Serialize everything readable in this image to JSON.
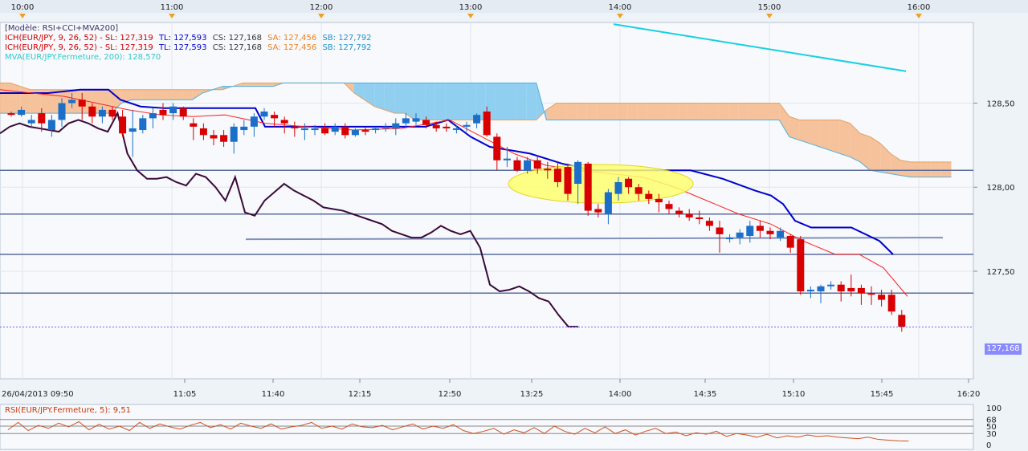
{
  "colors": {
    "bull": "#1b6fc8",
    "bear": "#d90000",
    "kijun": "#0000cc",
    "tenkan": "#ff2020",
    "chikou": "#3a0a3a",
    "kumo_up": "#f5b88a",
    "kumo_down": "#7ec8ec",
    "mva": "#18d0e0",
    "hline": "#5a6c9a",
    "rsi": "#d05020"
  },
  "legend": {
    "line1": "[Modèle: RSI+CCI+MVA200]",
    "line2": {
      "name": "ICH(EUR/JPY, 9, 26, 52) -  SL: 127,319",
      "tl": "TL: 127,593",
      "cs": "CS: 127,168",
      "sa": "SA: 127,456",
      "sb": "SB: 127,792"
    },
    "line3": {
      "name": "ICH(EUR/JPY, 9, 26, 52) -  SL: 127,319",
      "tl": "TL: 127,593",
      "cs": "CS: 127,168",
      "sa": "SA: 127,456",
      "sb": "SB: 127,792"
    },
    "line4": "MVA(EUR/JPY.Fermeture, 200): 128,570"
  },
  "rsi_label": "RSI(EUR/JPY.Fermeture, 5): 9,51",
  "last_price": "127,168",
  "date_label": "26/04/2013 09:50",
  "chart_data": {
    "type": "candlestick",
    "instrument": "EUR/JPY",
    "top_axis": [
      "10:00",
      "11:00",
      "12:00",
      "13:00",
      "14:00",
      "15:00",
      "16:00"
    ],
    "bottom_axis": [
      "11:05",
      "11:40",
      "12:15",
      "12:50",
      "13:25",
      "14:00",
      "14:35",
      "15:10",
      "15:45",
      "16:20"
    ],
    "y_ticks": [
      "128,50",
      "128,00",
      "127,50"
    ],
    "ylim": [
      126.86,
      128.98
    ],
    "rsi_ticks": [
      "100",
      "68",
      "50",
      "30",
      "0"
    ],
    "horizontal_levels": [
      128.1,
      127.84,
      127.6,
      127.37
    ],
    "candles": [
      [
        128.44,
        128.43,
        128.45,
        128.42
      ],
      [
        128.43,
        128.46,
        128.48,
        128.42
      ],
      [
        128.38,
        128.4,
        128.43,
        128.35
      ],
      [
        128.44,
        128.38,
        128.47,
        128.33
      ],
      [
        128.34,
        128.4,
        128.43,
        128.3
      ],
      [
        128.4,
        128.5,
        128.53,
        128.36
      ],
      [
        128.5,
        128.52,
        128.56,
        128.47
      ],
      [
        128.52,
        128.48,
        128.56,
        128.4
      ],
      [
        128.48,
        128.42,
        128.5,
        128.38
      ],
      [
        128.42,
        128.46,
        128.48,
        128.38
      ],
      [
        128.46,
        128.42,
        128.48,
        128.4
      ],
      [
        128.42,
        128.32,
        128.46,
        128.3
      ],
      [
        128.33,
        128.35,
        128.46,
        128.18
      ],
      [
        128.34,
        128.41,
        128.43,
        128.32
      ],
      [
        128.41,
        128.44,
        128.47,
        128.35
      ],
      [
        128.46,
        128.43,
        128.5,
        128.4
      ],
      [
        128.44,
        128.48,
        128.5,
        128.4
      ],
      [
        128.47,
        128.42,
        128.48,
        128.4
      ],
      [
        128.38,
        128.36,
        128.41,
        128.28
      ],
      [
        128.35,
        128.31,
        128.38,
        128.28
      ],
      [
        128.31,
        128.29,
        128.34,
        128.25
      ],
      [
        128.31,
        128.27,
        128.34,
        128.24
      ],
      [
        128.27,
        128.36,
        128.38,
        128.2
      ],
      [
        128.34,
        128.36,
        128.4,
        128.31
      ],
      [
        128.36,
        128.42,
        128.44,
        128.3
      ],
      [
        128.42,
        128.45,
        128.47,
        128.4
      ],
      [
        128.43,
        128.41,
        128.45,
        128.36
      ],
      [
        128.4,
        128.38,
        128.42,
        128.32
      ],
      [
        128.36,
        128.35,
        128.39,
        128.3
      ],
      [
        128.34,
        128.35,
        128.38,
        128.28
      ],
      [
        128.34,
        128.35,
        128.37,
        128.31
      ],
      [
        128.35,
        128.32,
        128.38,
        128.31
      ],
      [
        128.33,
        128.36,
        128.38,
        128.31
      ],
      [
        128.36,
        128.31,
        128.38,
        128.29
      ],
      [
        128.31,
        128.34,
        128.35,
        128.3
      ],
      [
        128.34,
        128.33,
        128.36,
        128.31
      ],
      [
        128.34,
        128.35,
        128.36,
        128.32
      ],
      [
        128.35,
        128.36,
        128.38,
        128.33
      ],
      [
        128.35,
        128.38,
        128.41,
        128.31
      ],
      [
        128.38,
        128.41,
        128.44,
        128.35
      ],
      [
        128.39,
        128.41,
        128.44,
        128.37
      ],
      [
        128.4,
        128.37,
        128.42,
        128.35
      ],
      [
        128.37,
        128.35,
        128.39,
        128.33
      ],
      [
        128.36,
        128.35,
        128.38,
        128.33
      ],
      [
        128.35,
        128.35,
        128.37,
        128.32
      ],
      [
        128.36,
        128.37,
        128.39,
        128.33
      ],
      [
        128.38,
        128.43,
        128.44,
        128.35
      ],
      [
        128.45,
        128.31,
        128.48,
        128.3
      ],
      [
        128.3,
        128.16,
        128.32,
        128.1
      ],
      [
        128.16,
        128.17,
        128.24,
        128.12
      ],
      [
        128.16,
        128.1,
        128.18,
        128.09
      ],
      [
        128.1,
        128.16,
        128.18,
        128.08
      ],
      [
        128.16,
        128.11,
        128.19,
        128.08
      ],
      [
        128.11,
        128.1,
        128.15,
        128.05
      ],
      [
        128.11,
        128.03,
        128.15,
        128.0
      ],
      [
        128.12,
        127.96,
        128.14,
        127.92
      ],
      [
        128.02,
        128.15,
        128.16,
        127.9
      ],
      [
        128.14,
        127.86,
        128.15,
        127.83
      ],
      [
        127.87,
        127.85,
        127.9,
        127.82
      ],
      [
        127.84,
        127.97,
        127.99,
        127.78
      ],
      [
        127.96,
        128.03,
        128.06,
        127.92
      ],
      [
        128.05,
        128.0,
        128.06,
        127.96
      ],
      [
        128.0,
        127.96,
        128.02,
        127.92
      ],
      [
        127.96,
        127.93,
        127.98,
        127.9
      ],
      [
        127.93,
        127.91,
        127.96,
        127.85
      ],
      [
        127.9,
        127.87,
        127.92,
        127.84
      ],
      [
        127.86,
        127.84,
        127.88,
        127.82
      ],
      [
        127.84,
        127.82,
        127.87,
        127.8
      ],
      [
        127.82,
        127.81,
        127.86,
        127.78
      ],
      [
        127.8,
        127.77,
        127.82,
        127.74
      ],
      [
        127.76,
        127.72,
        127.8,
        127.61
      ],
      [
        127.7,
        127.7,
        127.72,
        127.67
      ],
      [
        127.7,
        127.73,
        127.75,
        127.66
      ],
      [
        127.71,
        127.77,
        127.8,
        127.67
      ],
      [
        127.77,
        127.74,
        127.8,
        127.7
      ],
      [
        127.74,
        127.72,
        127.76,
        127.69
      ],
      [
        127.7,
        127.74,
        127.76,
        127.68
      ],
      [
        127.71,
        127.64,
        127.72,
        127.61
      ],
      [
        127.69,
        127.38,
        127.71,
        127.36
      ],
      [
        127.38,
        127.39,
        127.41,
        127.34
      ],
      [
        127.38,
        127.41,
        127.42,
        127.31
      ],
      [
        127.42,
        127.42,
        127.44,
        127.39
      ],
      [
        127.42,
        127.38,
        127.44,
        127.32
      ],
      [
        127.4,
        127.38,
        127.48,
        127.35
      ],
      [
        127.4,
        127.37,
        127.42,
        127.3
      ],
      [
        127.37,
        127.36,
        127.41,
        127.3
      ],
      [
        127.36,
        127.33,
        127.39,
        127.29
      ],
      [
        127.36,
        127.26,
        127.39,
        127.24
      ],
      [
        127.24,
        127.17,
        127.27,
        127.14
      ]
    ]
  }
}
